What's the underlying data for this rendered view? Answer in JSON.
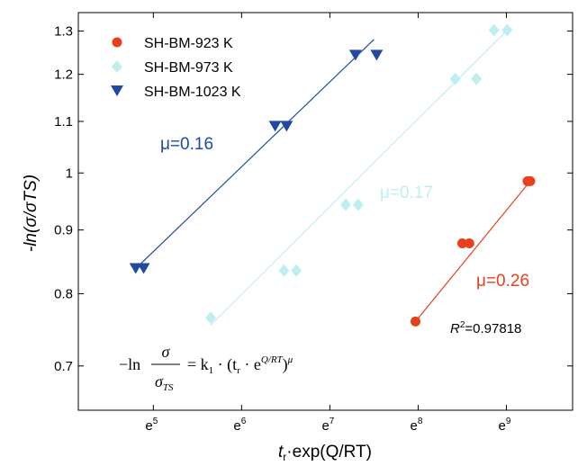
{
  "chart_data": {
    "type": "scatter",
    "title": "",
    "xlabel_main": "t",
    "xlabel_sub": "r",
    "xlabel_rest": "·exp(Q/RT)",
    "ylabel": "-ln(σ/σTS)",
    "x_scale": "natural-log",
    "y_scale": "log",
    "xlim_exponent": [
      4.15,
      9.75
    ],
    "ylim": [
      0.645,
      1.345
    ],
    "x_ticks": [
      {
        "exponent": 5,
        "base": "e",
        "sup": "5"
      },
      {
        "exponent": 6,
        "base": "e",
        "sup": "6"
      },
      {
        "exponent": 7,
        "base": "e",
        "sup": "7"
      },
      {
        "exponent": 8,
        "base": "e",
        "sup": "8"
      },
      {
        "exponent": 9,
        "base": "e",
        "sup": "9"
      }
    ],
    "y_ticks": [
      {
        "value": 0.7,
        "label": "0.7"
      },
      {
        "value": 0.8,
        "label": "0.8"
      },
      {
        "value": 0.9,
        "label": "0.9"
      },
      {
        "value": 1.0,
        "label": "1"
      },
      {
        "value": 1.1,
        "label": "1.1"
      },
      {
        "value": 1.2,
        "label": "1.2"
      },
      {
        "value": 1.3,
        "label": "1.3"
      }
    ],
    "grid": false,
    "legend_position": "top-left",
    "series": [
      {
        "name": "SH-BM-923 K",
        "color": "#e8401c",
        "marker": "circle",
        "points": [
          [
            7.97,
            0.76
          ],
          [
            8.5,
            0.878
          ],
          [
            8.58,
            0.878
          ],
          [
            9.24,
            0.985
          ],
          [
            9.27,
            0.985
          ]
        ],
        "fit": {
          "x_range": [
            7.97,
            9.27
          ],
          "y_range": [
            0.76,
            0.985
          ]
        },
        "mu_label": "μ=0.26"
      },
      {
        "name": "SH-BM-973 K",
        "color": "#bfeef0",
        "marker": "diamond",
        "points": [
          [
            5.65,
            0.765
          ],
          [
            6.48,
            0.835
          ],
          [
            6.62,
            0.835
          ],
          [
            7.18,
            0.943
          ],
          [
            7.32,
            0.943
          ],
          [
            8.42,
            1.19
          ],
          [
            8.66,
            1.19
          ],
          [
            8.86,
            1.302
          ],
          [
            9.01,
            1.302
          ]
        ],
        "fit": {
          "x_range": [
            5.65,
            9.01
          ],
          "y_range": [
            0.755,
            1.302
          ]
        },
        "mu_label": "μ=0.17"
      },
      {
        "name": "SH-BM-1023 K",
        "color": "#1f4aa0",
        "marker": "triangle-down",
        "points": [
          [
            4.8,
            0.838
          ],
          [
            4.89,
            0.838
          ],
          [
            6.38,
            1.09
          ],
          [
            6.51,
            1.09
          ],
          [
            7.29,
            1.243
          ],
          [
            7.53,
            1.243
          ]
        ],
        "fit": {
          "x_range": [
            4.8,
            7.5
          ],
          "y_range": [
            0.838,
            1.28
          ]
        },
        "mu_label": "μ=0.16"
      }
    ],
    "annotations": {
      "r2": {
        "prefix": "R",
        "sup": "2",
        "value": "=0.97818"
      },
      "equation": {
        "lhs": "−ln",
        "num": "σ",
        "den": "σ",
        "den_sub": "TS",
        "rhs": "= k",
        "k_sub": "1",
        "rhs2": " · (t",
        "t_sub": "r",
        "rhs3": " · e",
        "exp": "Q/RT",
        "rhs4": ")",
        "pow": "μ"
      }
    }
  }
}
